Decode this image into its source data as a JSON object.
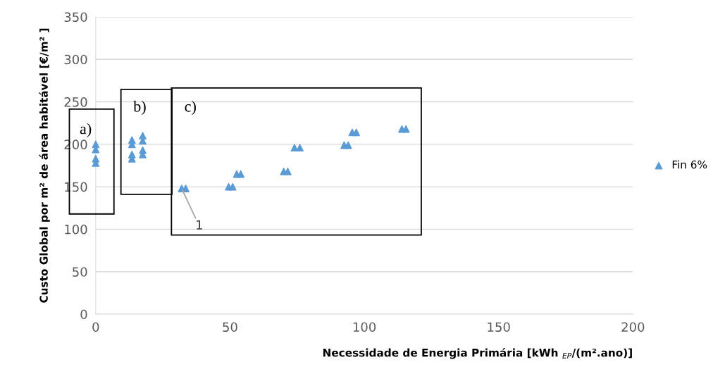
{
  "chart_data": {
    "type": "scatter",
    "xlabel": "Necessidade de Energia Primária [kWh $_{EP}$/(m².ano)]",
    "ylabel": "Custo Global por m² de área habitável [€/m² ]",
    "series": [
      {
        "name": "Fin 6%",
        "color": "#5b9bd5",
        "x": [
          0,
          0,
          0,
          0,
          13.5,
          13.5,
          13.5,
          13.5,
          17.5,
          17.5,
          17.5,
          17.5,
          32,
          33.5,
          49.5,
          51,
          52.5,
          54,
          70,
          71.5,
          74,
          76,
          92.5,
          94,
          95.5,
          97,
          114,
          115.5
        ],
        "values": [
          200,
          194,
          183,
          178,
          205,
          200,
          188,
          183,
          210,
          204,
          193,
          188,
          148,
          148,
          150,
          150,
          165,
          165,
          168,
          168,
          196,
          196,
          199,
          199,
          214,
          214,
          218,
          218
        ]
      }
    ],
    "marker": "triangle",
    "xlim": [
      0,
      200
    ],
    "xticks": [
      0,
      50,
      100,
      150,
      200
    ],
    "ylim": [
      0,
      350
    ],
    "yticks": [
      0,
      50,
      100,
      150,
      200,
      250,
      300,
      350
    ],
    "grid": "y",
    "legend": "right",
    "annotations": [
      "a)",
      "b)",
      "c)",
      {
        "text": "1",
        "x": 32,
        "y": 148
      }
    ]
  }
}
